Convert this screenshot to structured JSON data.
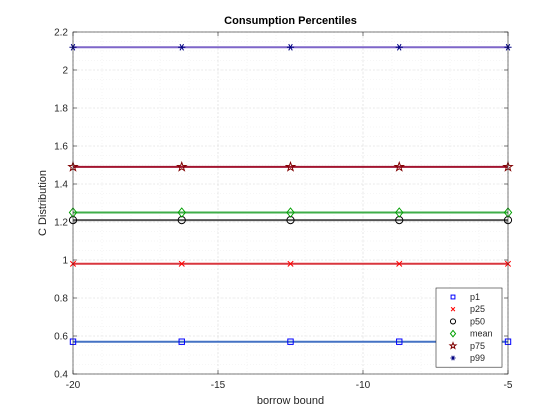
{
  "chart_data": {
    "type": "line",
    "title": "Consumption Percentiles",
    "xlabel": "borrow bound",
    "ylabel": "C Distribution",
    "xlim": [
      -20,
      -5
    ],
    "ylim": [
      0.4,
      2.2
    ],
    "grid": true,
    "minor_grid": true,
    "legend_position": "bottom-right",
    "x_ticks": [
      -20,
      -15,
      -10,
      -5
    ],
    "x_tick_labels": [
      "-20",
      "-15",
      "-10",
      "-5"
    ],
    "y_ticks": [
      0.4,
      0.6,
      0.8,
      1.0,
      1.2,
      1.4,
      1.6,
      1.8,
      2.0,
      2.2
    ],
    "y_tick_labels": [
      "0.4",
      "0.6",
      "0.8",
      "1",
      "1.2",
      "1.4",
      "1.6",
      "1.8",
      "2",
      "2.2"
    ],
    "x": [
      -20,
      -16.25,
      -12.5,
      -8.75,
      -5
    ],
    "series": [
      {
        "name": "p1",
        "values": [
          0.57,
          0.57,
          0.57,
          0.57,
          0.57
        ],
        "color": "#0000ff",
        "line_color": "#4472c4",
        "marker": "square"
      },
      {
        "name": "p25",
        "values": [
          0.98,
          0.98,
          0.98,
          0.98,
          0.98
        ],
        "color": "#ff0000",
        "line_color": "#d9363e",
        "marker": "x"
      },
      {
        "name": "p50",
        "values": [
          1.21,
          1.21,
          1.21,
          1.21,
          1.21
        ],
        "color": "#000000",
        "line_color": "#555555",
        "marker": "circle"
      },
      {
        "name": "mean",
        "values": [
          1.25,
          1.25,
          1.25,
          1.25,
          1.25
        ],
        "color": "#00a000",
        "line_color": "#3fae49",
        "marker": "diamond"
      },
      {
        "name": "p75",
        "values": [
          1.49,
          1.49,
          1.49,
          1.49,
          1.49
        ],
        "color": "#800000",
        "line_color": "#a2142f",
        "marker": "pentagram"
      },
      {
        "name": "p99",
        "values": [
          2.12,
          2.12,
          2.12,
          2.12,
          2.12
        ],
        "color": "#000080",
        "line_color": "#7e66c9",
        "marker": "asterisk"
      }
    ]
  }
}
